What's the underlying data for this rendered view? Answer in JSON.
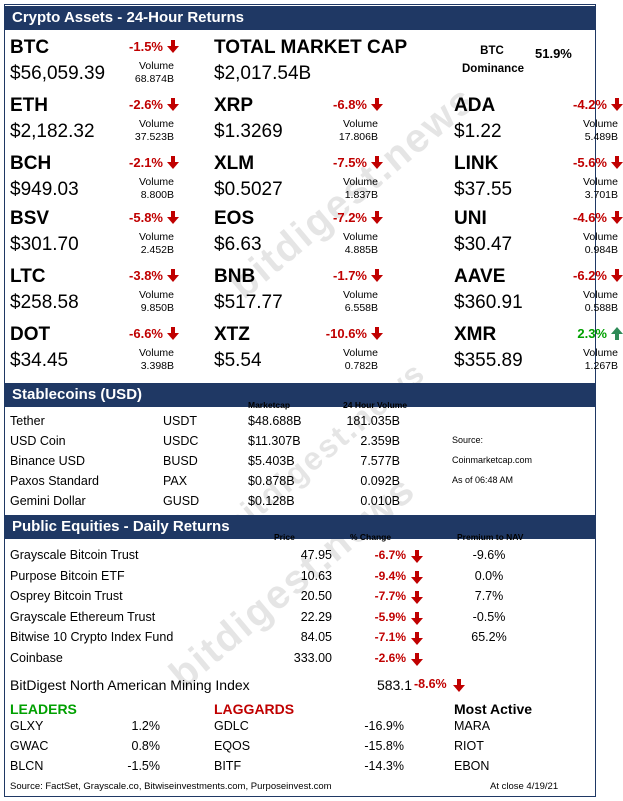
{
  "crypto": {
    "title": "Crypto Assets - 24-Hour Returns",
    "volume_label": "Volume",
    "total_market_cap_label": "TOTAL MARKET CAP",
    "total_market_cap": "$2,017.54B",
    "btc_dominance_label": "BTC Dominance",
    "btc_dominance": "51.9%",
    "assets": [
      {
        "symbol": "BTC",
        "change": "-1.5%",
        "price": "$56,059.39",
        "volume": "68.874B",
        "dir": "down"
      },
      {
        "symbol": "ETH",
        "change": "-2.6%",
        "price": "$2,182.32",
        "volume": "37.523B",
        "dir": "down"
      },
      {
        "symbol": "XRP",
        "change": "-6.8%",
        "price": "$1.3269",
        "volume": "17.806B",
        "dir": "down"
      },
      {
        "symbol": "ADA",
        "change": "-4.2%",
        "price": "$1.22",
        "volume": "5.489B",
        "dir": "down"
      },
      {
        "symbol": "BCH",
        "change": "-2.1%",
        "price": "$949.03",
        "volume": "8.800B",
        "dir": "down"
      },
      {
        "symbol": "XLM",
        "change": "-7.5%",
        "price": "$0.5027",
        "volume": "1.837B",
        "dir": "down"
      },
      {
        "symbol": "LINK",
        "change": "-5.6%",
        "price": "$37.55",
        "volume": "3.701B",
        "dir": "down"
      },
      {
        "symbol": "BSV",
        "change": "-5.8%",
        "price": "$301.70",
        "volume": "2.452B",
        "dir": "down"
      },
      {
        "symbol": "EOS",
        "change": "-7.2%",
        "price": "$6.63",
        "volume": "4.885B",
        "dir": "down"
      },
      {
        "symbol": "UNI",
        "change": "-4.6%",
        "price": "$30.47",
        "volume": "0.984B",
        "dir": "down"
      },
      {
        "symbol": "LTC",
        "change": "-3.8%",
        "price": "$258.58",
        "volume": "9.850B",
        "dir": "down"
      },
      {
        "symbol": "BNB",
        "change": "-1.7%",
        "price": "$517.77",
        "volume": "6.558B",
        "dir": "down"
      },
      {
        "symbol": "AAVE",
        "change": "-6.2%",
        "price": "$360.91",
        "volume": "0.588B",
        "dir": "down"
      },
      {
        "symbol": "DOT",
        "change": "-6.6%",
        "price": "$34.45",
        "volume": "3.398B",
        "dir": "down"
      },
      {
        "symbol": "XTZ",
        "change": "-10.6%",
        "price": "$5.54",
        "volume": "0.782B",
        "dir": "down"
      },
      {
        "symbol": "XMR",
        "change": "2.3%",
        "price": "$355.89",
        "volume": "1.267B",
        "dir": "up"
      }
    ]
  },
  "stablecoins": {
    "title": "Stablecoins (USD)",
    "col_marketcap": "Marketcap",
    "col_volume": "24 Hour Volume",
    "rows": [
      {
        "name": "Tether",
        "ticker": "USDT",
        "marketcap": "$48.688B",
        "volume": "181.035B"
      },
      {
        "name": "USD Coin",
        "ticker": "USDC",
        "marketcap": "$11.307B",
        "volume": "2.359B"
      },
      {
        "name": "Binance USD",
        "ticker": "BUSD",
        "marketcap": "$5.403B",
        "volume": "7.577B"
      },
      {
        "name": "Paxos Standard",
        "ticker": "PAX",
        "marketcap": "$0.878B",
        "volume": "0.092B"
      },
      {
        "name": "Gemini Dollar",
        "ticker": "GUSD",
        "marketcap": "$0.128B",
        "volume": "0.010B"
      }
    ],
    "source_label": "Source:",
    "source": "Coinmarketcap.com",
    "as_of": "As of 06:48 AM"
  },
  "equities": {
    "title": "Public Equities - Daily Returns",
    "col_price": "Price",
    "col_change": "% Change",
    "col_premium": "Premium to NAV",
    "rows": [
      {
        "name": "Grayscale Bitcoin Trust",
        "price": "47.95",
        "change": "-6.7%",
        "premium": "-9.6%"
      },
      {
        "name": "Purpose Bitcoin ETF",
        "price": "10.63",
        "change": "-9.4%",
        "premium": "0.0%"
      },
      {
        "name": "Osprey Bitcoin Trust",
        "price": "20.50",
        "change": "-7.7%",
        "premium": "7.7%"
      },
      {
        "name": "Grayscale Ethereum Trust",
        "price": "22.29",
        "change": "-5.9%",
        "premium": "-0.5%"
      },
      {
        "name": "Bitwise 10 Crypto Index Fund",
        "price": "84.05",
        "change": "-7.1%",
        "premium": "65.2%"
      },
      {
        "name": "Coinbase",
        "price": "333.00",
        "change": "-2.6%",
        "premium": ""
      }
    ],
    "mining_label": "BitDigest North American Mining Index",
    "mining_value": "583.1",
    "mining_change": "-8.6%"
  },
  "movers": {
    "leaders_label": "LEADERS",
    "laggards_label": "LAGGARDS",
    "active_label": "Most Active",
    "leaders": [
      {
        "ticker": "GLXY",
        "change": "1.2%"
      },
      {
        "ticker": "GWAC",
        "change": "0.8%"
      },
      {
        "ticker": "BLCN",
        "change": "-1.5%"
      }
    ],
    "laggards": [
      {
        "ticker": "GDLC",
        "change": "-16.9%"
      },
      {
        "ticker": "EQOS",
        "change": "-15.8%"
      },
      {
        "ticker": "BITF",
        "change": "-14.3%"
      }
    ],
    "active": [
      "MARA",
      "RIOT",
      "EBON"
    ]
  },
  "footer": {
    "sources": "Source: FactSet, Grayscale.co, Bitwiseinvestments.com, Purposeinvest.com",
    "at_close": "At close  4/19/21"
  },
  "watermark": "bitdigest.news",
  "colors": {
    "navy": "#1f3864",
    "red": "#c00000",
    "green": "#00a000"
  }
}
